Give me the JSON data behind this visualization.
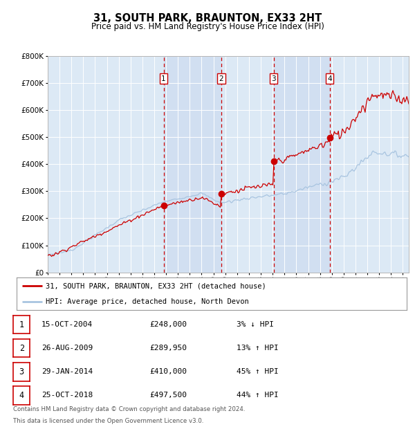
{
  "title": "31, SOUTH PARK, BRAUNTON, EX33 2HT",
  "subtitle": "Price paid vs. HM Land Registry's House Price Index (HPI)",
  "legend_line1": "31, SOUTH PARK, BRAUNTON, EX33 2HT (detached house)",
  "legend_line2": "HPI: Average price, detached house, North Devon",
  "footer_line1": "Contains HM Land Registry data © Crown copyright and database right 2024.",
  "footer_line2": "This data is licensed under the Open Government Licence v3.0.",
  "hpi_color": "#a8c4e0",
  "price_color": "#cc0000",
  "marker_color": "#cc0000",
  "bg_chart": "#dce9f5",
  "grid_color": "#ffffff",
  "vline_color": "#cc0000",
  "ylim": [
    0,
    800000
  ],
  "yticks": [
    0,
    100000,
    200000,
    300000,
    400000,
    500000,
    600000,
    700000,
    800000
  ],
  "sales": [
    {
      "num": 1,
      "price": 248000,
      "x_year": 2004.79
    },
    {
      "num": 2,
      "price": 289950,
      "x_year": 2009.65
    },
    {
      "num": 3,
      "price": 410000,
      "x_year": 2014.08
    },
    {
      "num": 4,
      "price": 497500,
      "x_year": 2018.81
    }
  ],
  "table_rows": [
    {
      "num": 1,
      "date_str": "15-OCT-2004",
      "price_str": "£248,000",
      "desc": "3% ↓ HPI"
    },
    {
      "num": 2,
      "date_str": "26-AUG-2009",
      "price_str": "£289,950",
      "desc": "13% ↑ HPI"
    },
    {
      "num": 3,
      "date_str": "29-JAN-2014",
      "price_str": "£410,000",
      "desc": "45% ↑ HPI"
    },
    {
      "num": 4,
      "date_str": "25-OCT-2018",
      "price_str": "£497,500",
      "desc": "44% ↑ HPI"
    }
  ],
  "x_start": 1995.0,
  "x_end": 2025.5,
  "xticks": [
    1995,
    1996,
    1997,
    1998,
    1999,
    2000,
    2001,
    2002,
    2003,
    2004,
    2005,
    2006,
    2007,
    2008,
    2009,
    2010,
    2011,
    2012,
    2013,
    2014,
    2015,
    2016,
    2017,
    2018,
    2019,
    2020,
    2021,
    2022,
    2023,
    2024,
    2025
  ]
}
